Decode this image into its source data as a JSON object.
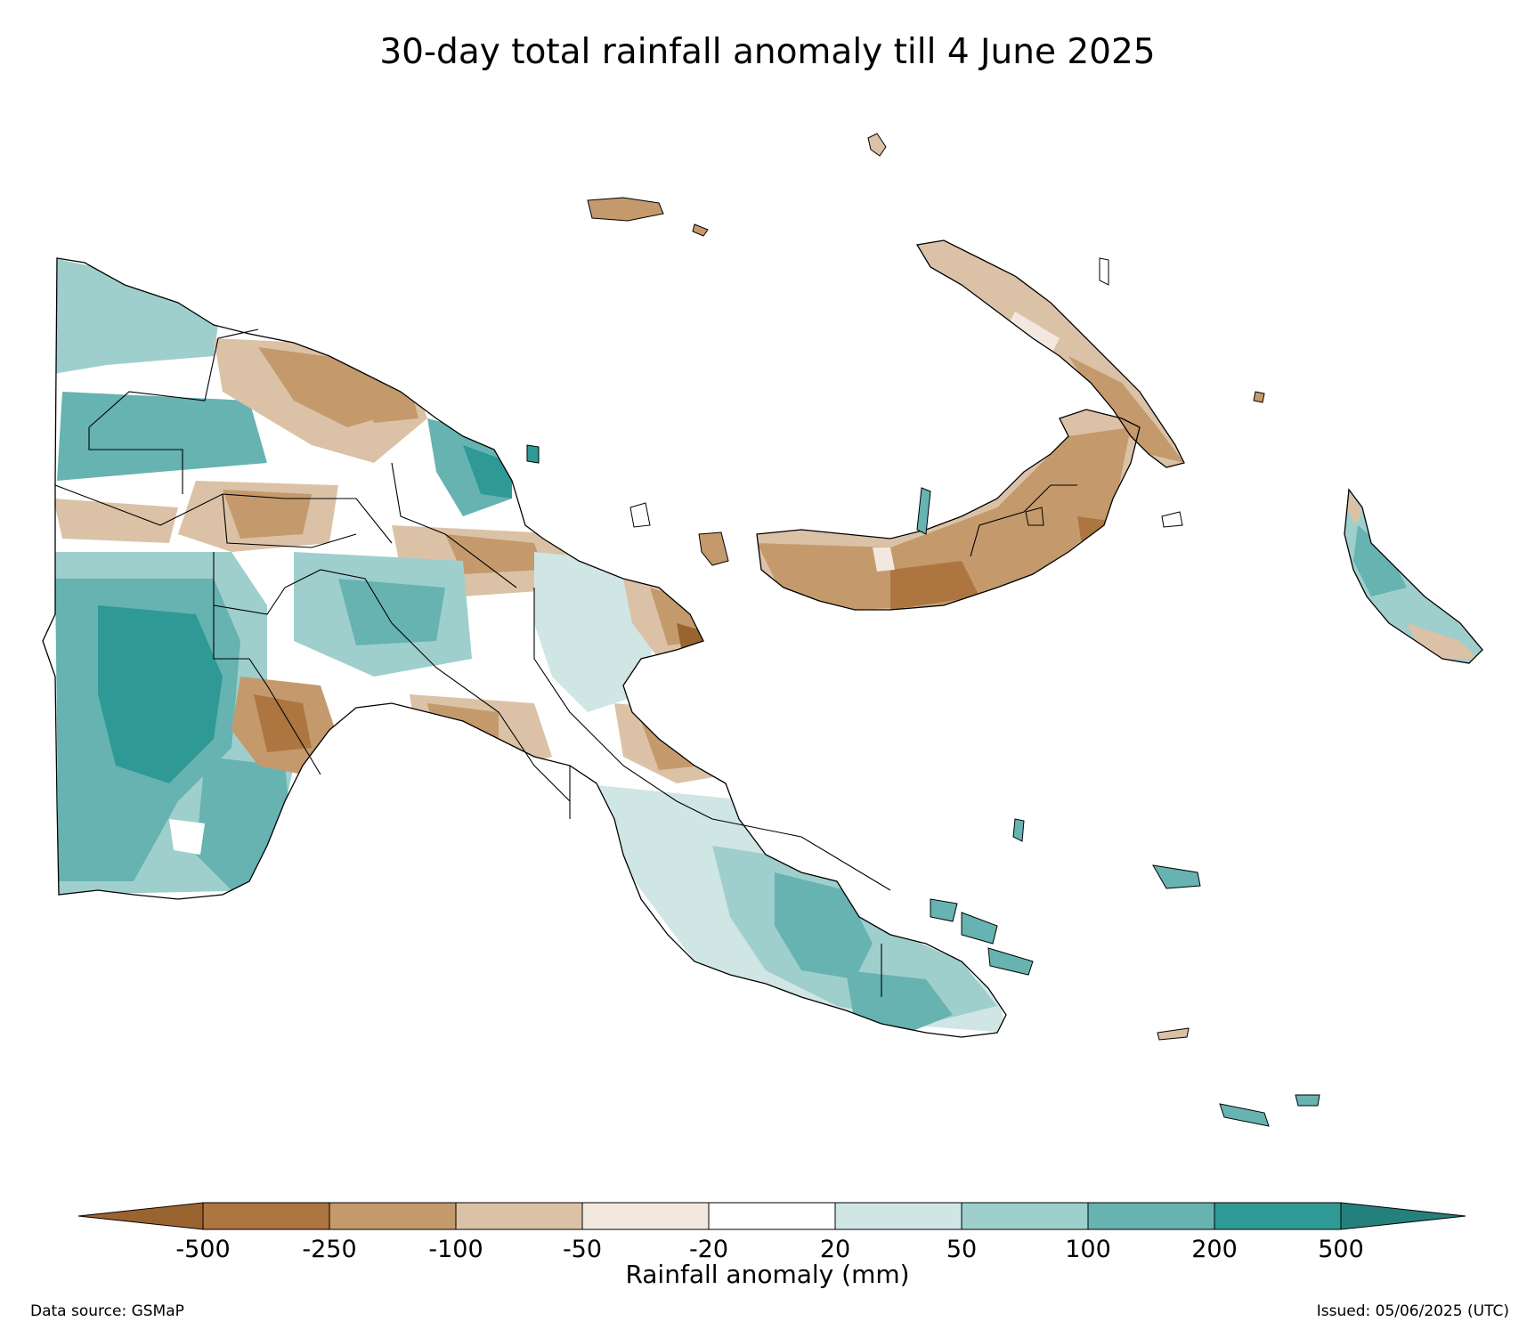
{
  "title": "30-day total rainfall anomaly till 4 June 2025",
  "colorbar": {
    "label": "Rainfall anomaly (mm)",
    "ticks": [
      "-500",
      "-250",
      "-100",
      "-50",
      "-20",
      "20",
      "50",
      "100",
      "200",
      "500"
    ],
    "colors": [
      "#9a6430",
      "#ad7540",
      "#c49a6c",
      "#dbc2a7",
      "#f2e8df",
      "#ffffff",
      "#cfe6e5",
      "#9ecfcd",
      "#66b3b1",
      "#2f9995",
      "#24807c"
    ]
  },
  "footer": {
    "source": "Data source: GSMaP",
    "issued": "Issued: 05/06/2025 (UTC)"
  },
  "map_colors": {
    "border": "#000000",
    "ocean": "#ffffff"
  }
}
